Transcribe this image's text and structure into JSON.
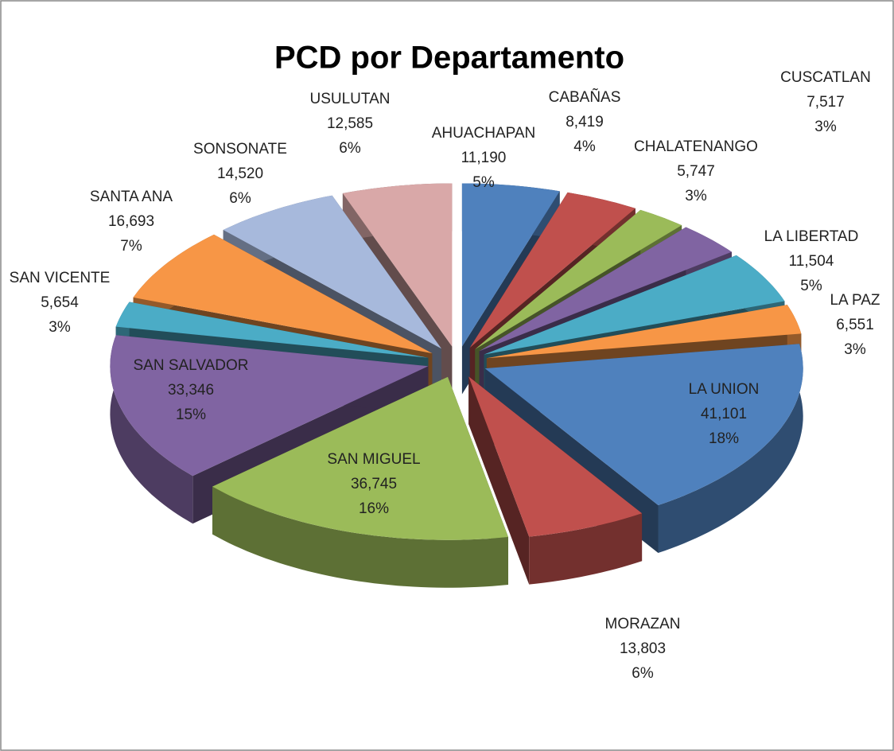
{
  "chart_data": {
    "type": "pie3d",
    "title": "PCD por Departamento",
    "categories": [
      "AHUACHAPAN",
      "CABAÑAS",
      "CHALATENANGO",
      "CUSCATLAN",
      "LA LIBERTAD",
      "LA PAZ",
      "LA UNION",
      "MORAZAN",
      "SAN MIGUEL",
      "SAN SALVADOR",
      "SAN VICENTE",
      "SANTA ANA",
      "SONSONATE",
      "USULUTAN"
    ],
    "values": [
      11190,
      8419,
      5747,
      7517,
      11504,
      6551,
      41101,
      13803,
      36745,
      33346,
      5654,
      16693,
      14520,
      12585
    ],
    "value_labels": [
      "11,190",
      "8,419",
      "5,747",
      "7,517",
      "11,504",
      "6,551",
      "41,101",
      "13,803",
      "36,745",
      "33,346",
      "5,654",
      "16,693",
      "14,520",
      "12,585"
    ],
    "percent_labels": [
      "5%",
      "4%",
      "3%",
      "3%",
      "5%",
      "3%",
      "18%",
      "6%",
      "16%",
      "15%",
      "3%",
      "7%",
      "6%",
      "6%"
    ],
    "colors": [
      "#4f81bd",
      "#c0504d",
      "#9bbb59",
      "#8064a2",
      "#4bacc6",
      "#f79646",
      "#4f81bd",
      "#c0504d",
      "#9bbb59",
      "#8064a2",
      "#4bacc6",
      "#f79646",
      "#a7b9dc",
      "#d9a8a8"
    ]
  }
}
